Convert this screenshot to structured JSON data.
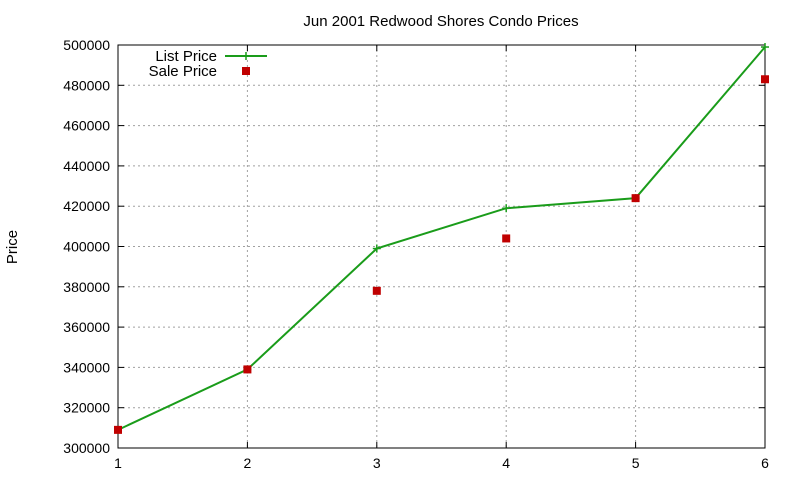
{
  "chart_data": {
    "type": "line",
    "title": "Jun 2001 Redwood Shores Condo Prices",
    "xlabel": "",
    "ylabel": "Price",
    "x": [
      1,
      2,
      3,
      4,
      5,
      6
    ],
    "xlim": [
      1,
      6
    ],
    "ylim": [
      300000,
      500000
    ],
    "xticks": [
      "1",
      "2",
      "3",
      "4",
      "5",
      "6"
    ],
    "yticks": [
      "300000",
      "320000",
      "340000",
      "360000",
      "380000",
      "400000",
      "420000",
      "440000",
      "460000",
      "480000",
      "500000"
    ],
    "grid": true,
    "legend_position": "top-left",
    "series": [
      {
        "name": "List Price",
        "style": "linespoints",
        "marker": "plus",
        "color": "#1a9c1a",
        "values": [
          309000,
          339000,
          399000,
          419000,
          424000,
          499000
        ]
      },
      {
        "name": "Sale Price",
        "style": "points",
        "marker": "square",
        "color": "#c00000",
        "values": [
          309000,
          339000,
          378000,
          404000,
          424000,
          483000
        ]
      }
    ]
  }
}
